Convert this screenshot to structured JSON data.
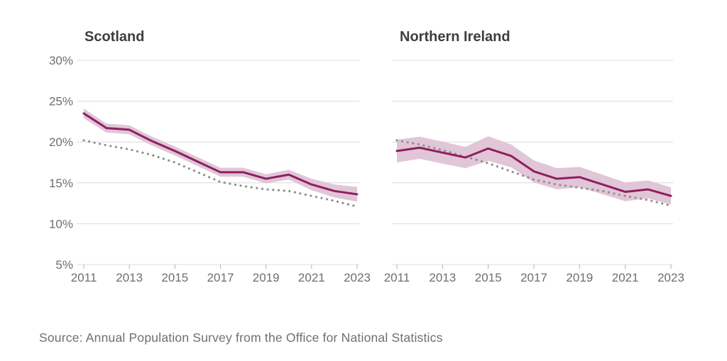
{
  "source_note": "Source: Annual Population Survey from the Office for National Statistics",
  "colors": {
    "solid_line": "#8e1f5f",
    "confidence_band": "#e1c6d7",
    "dotted_line": "#8f8f8f",
    "gridline": "#dcdcdc",
    "tick_mark": "#b3b3b3",
    "tick_text": "#6e6e6e",
    "title_text": "#3e3e3e",
    "background": "#ffffff"
  },
  "chart_data": [
    {
      "type": "line",
      "title": "Scotland",
      "x": [
        2011,
        2012,
        2013,
        2014,
        2015,
        2016,
        2017,
        2018,
        2019,
        2020,
        2021,
        2022,
        2023
      ],
      "x_tick_labels": [
        "2011",
        "2013",
        "2015",
        "2017",
        "2019",
        "2021",
        "2023"
      ],
      "y_ticks": [
        30,
        25,
        20,
        15,
        10,
        5
      ],
      "y_tick_labels": [
        "30%",
        "25%",
        "20%",
        "15%",
        "10%",
        "5%"
      ],
      "show_y_labels": true,
      "ylim": [
        5,
        30
      ],
      "grid": true,
      "legend": "none",
      "series": [
        {
          "id": "solid-with-band",
          "style": "solid",
          "values": [
            23.5,
            21.7,
            21.5,
            20.1,
            18.9,
            17.6,
            16.3,
            16.3,
            15.5,
            16.0,
            14.8,
            14.0,
            13.6
          ],
          "band_halfwidth": [
            0.6,
            0.55,
            0.55,
            0.55,
            0.55,
            0.55,
            0.55,
            0.55,
            0.55,
            0.6,
            0.7,
            0.8,
            0.9
          ]
        },
        {
          "id": "dotted-reference",
          "style": "dotted",
          "values": [
            20.2,
            19.6,
            19.1,
            18.4,
            17.5,
            16.3,
            15.1,
            14.6,
            14.2,
            14.0,
            13.4,
            12.8,
            12.1
          ]
        }
      ]
    },
    {
      "type": "line",
      "title": "Northern Ireland",
      "x": [
        2011,
        2012,
        2013,
        2014,
        2015,
        2016,
        2017,
        2018,
        2019,
        2020,
        2021,
        2022,
        2023
      ],
      "x_tick_labels": [
        "2011",
        "2013",
        "2015",
        "2017",
        "2019",
        "2021",
        "2023"
      ],
      "y_ticks": [
        30,
        25,
        20,
        15,
        10,
        5
      ],
      "y_tick_labels": [
        "30%",
        "25%",
        "20%",
        "15%",
        "10%",
        "5%"
      ],
      "show_y_labels": false,
      "ylim": [
        5,
        30
      ],
      "grid": true,
      "legend": "none",
      "series": [
        {
          "id": "solid-with-band",
          "style": "solid",
          "values": [
            18.9,
            19.3,
            18.7,
            18.1,
            19.2,
            18.3,
            16.4,
            15.5,
            15.7,
            14.8,
            13.9,
            14.2,
            13.4
          ],
          "band_halfwidth": [
            1.4,
            1.35,
            1.35,
            1.3,
            1.5,
            1.4,
            1.35,
            1.3,
            1.25,
            1.2,
            1.15,
            1.1,
            1.05
          ]
        },
        {
          "id": "dotted-reference",
          "style": "dotted",
          "values": [
            20.2,
            19.7,
            19.0,
            18.2,
            17.4,
            16.4,
            15.4,
            14.8,
            14.4,
            14.0,
            13.4,
            12.9,
            12.2
          ]
        }
      ]
    }
  ]
}
